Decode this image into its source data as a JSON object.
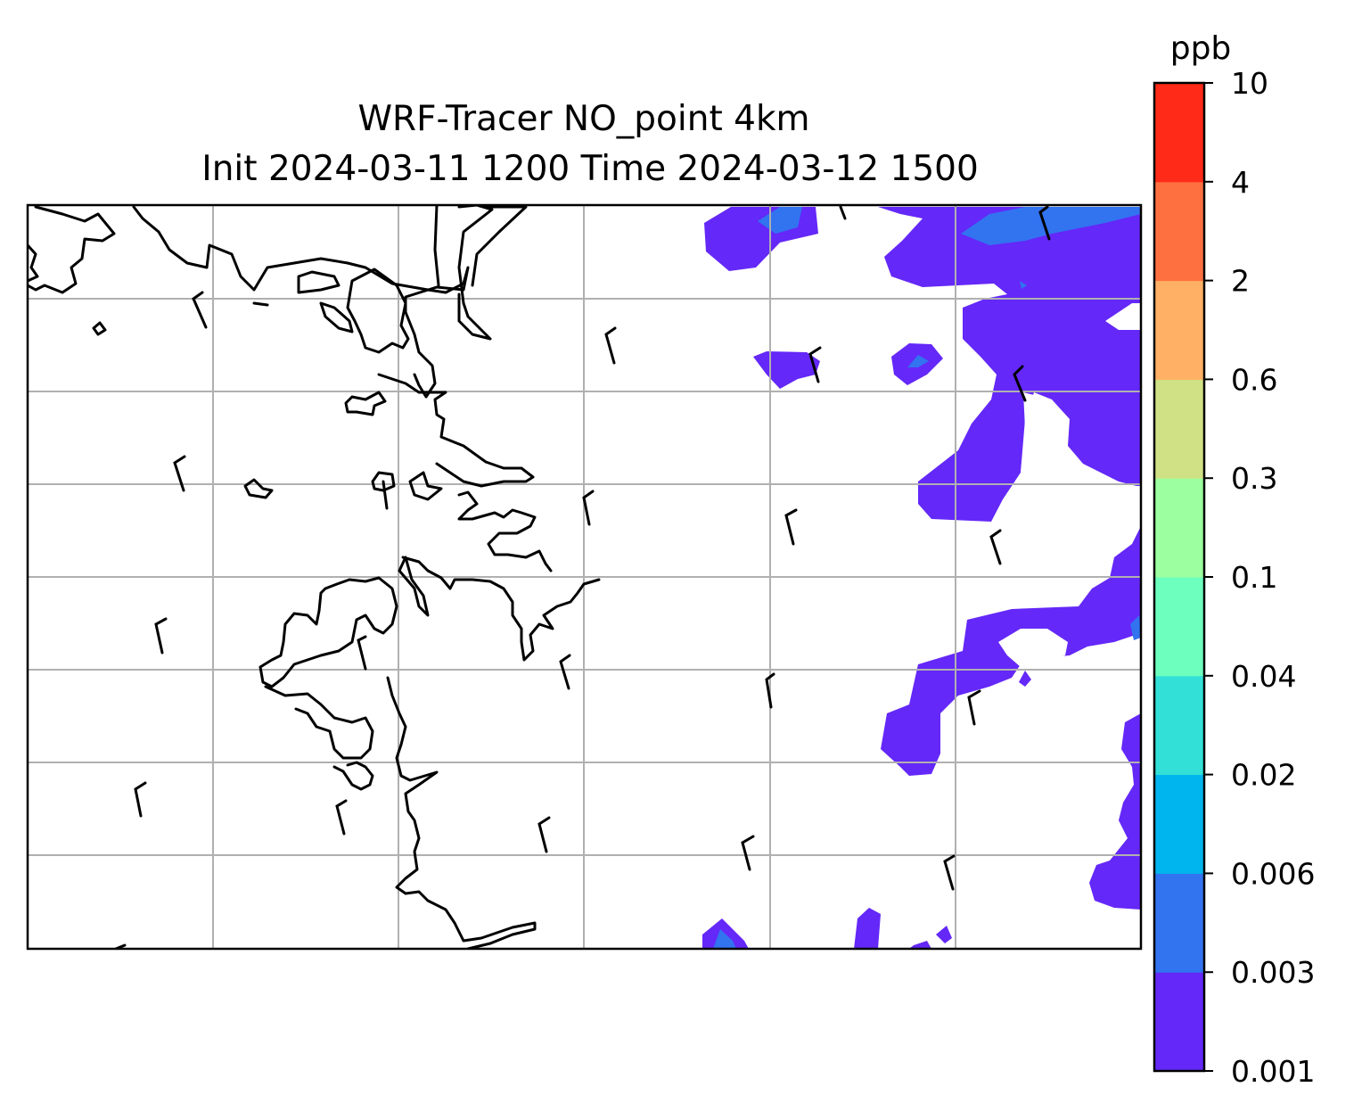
{
  "figure": {
    "title_line1": "WRF-Tracer NO_point 4km",
    "title_line2": "Init 2024-03-11 1200 Time 2024-03-12 1500"
  },
  "colorbar": {
    "unit": "ppb",
    "levels": [
      "0.001",
      "0.003",
      "0.006",
      "0.02",
      "0.04",
      "0.1",
      "0.3",
      "0.6",
      "2",
      "4",
      "10"
    ],
    "colors": [
      "#6428f8",
      "#3273f0",
      "#00b4ee",
      "#32e0d8",
      "#6cffbe",
      "#9cffa0",
      "#d0e084",
      "#ffb064",
      "#ff7040",
      "#ff2a18"
    ]
  },
  "map": {
    "gridlines": true,
    "features": [
      "coastline",
      "wind-barbs",
      "tracer-contours"
    ],
    "wind_barb_count": 24
  }
}
